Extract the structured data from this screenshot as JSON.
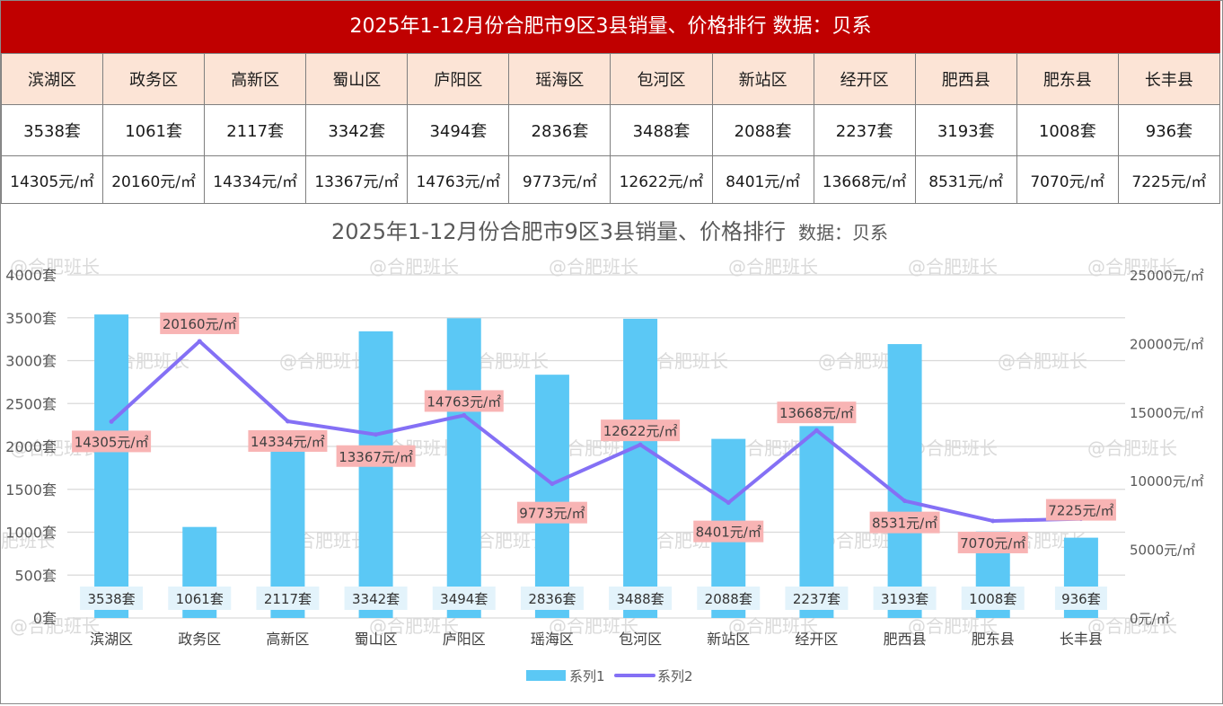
{
  "header": {
    "title": "2025年1-12月份合肥市9区3县销量、价格排行  数据：贝系"
  },
  "table": {
    "districts": [
      "滨湖区",
      "政务区",
      "高新区",
      "蜀山区",
      "庐阳区",
      "瑶海区",
      "包河区",
      "新站区",
      "经开区",
      "肥西县",
      "肥东县",
      "长丰县"
    ],
    "sales": [
      "3538套",
      "1061套",
      "2117套",
      "3342套",
      "3494套",
      "2836套",
      "3488套",
      "2088套",
      "2237套",
      "3193套",
      "1008套",
      "936套"
    ],
    "prices": [
      "14305元/㎡",
      "20160元/㎡",
      "14334元/㎡",
      "13367元/㎡",
      "14763元/㎡",
      "9773元/㎡",
      "12622元/㎡",
      "8401元/㎡",
      "13668元/㎡",
      "8531元/㎡",
      "7070元/㎡",
      "7225元/㎡"
    ]
  },
  "watermark": "@合肥班长",
  "colors": {
    "title_bg": "#c00000",
    "header_row_bg": "#fce4d6",
    "bar": "#5bc8f5",
    "line": "#8470f5",
    "price_label_bg": "#f8b4b4",
    "sales_label_bg": "#e3f3fb"
  },
  "chart_data": {
    "type": "bar+line",
    "title": "2025年1-12月份合肥市9区3县销量、价格排行",
    "subtitle": "数据：贝系",
    "categories": [
      "滨湖区",
      "政务区",
      "高新区",
      "蜀山区",
      "庐阳区",
      "瑶海区",
      "包河区",
      "新站区",
      "经开区",
      "肥西县",
      "肥东县",
      "长丰县"
    ],
    "series": [
      {
        "name": "系列1",
        "type": "bar",
        "axis": "left",
        "values": [
          3538,
          1061,
          2117,
          3342,
          3494,
          2836,
          3488,
          2088,
          2237,
          3193,
          1008,
          936
        ],
        "labels": [
          "3538套",
          "1061套",
          "2117套",
          "3342套",
          "3494套",
          "2836套",
          "3488套",
          "2088套",
          "2237套",
          "3193套",
          "1008套",
          "936套"
        ]
      },
      {
        "name": "系列2",
        "type": "line",
        "axis": "right",
        "values": [
          14305,
          20160,
          14334,
          13367,
          14763,
          9773,
          12622,
          8401,
          13668,
          8531,
          7070,
          7225
        ],
        "labels": [
          "14305元/㎡",
          "20160元/㎡",
          "14334元/㎡",
          "13367元/㎡",
          "14763元/㎡",
          "9773元/㎡",
          "12622元/㎡",
          "8401元/㎡",
          "13668元/㎡",
          "8531元/㎡",
          "7070元/㎡",
          "7225元/㎡"
        ]
      }
    ],
    "y_left": {
      "range": [
        0,
        4000
      ],
      "ticks": [
        "0套",
        "500套",
        "1000套",
        "1500套",
        "2000套",
        "2500套",
        "3000套",
        "3500套",
        "4000套"
      ]
    },
    "y_right": {
      "range": [
        0,
        25000
      ],
      "ticks": [
        "0元/㎡",
        "5000元/㎡",
        "10000元/㎡",
        "15000元/㎡",
        "20000元/㎡",
        "25000元/㎡"
      ]
    },
    "grid": true,
    "legend": {
      "position": "bottom",
      "items": [
        "系列1",
        "系列2"
      ]
    }
  }
}
